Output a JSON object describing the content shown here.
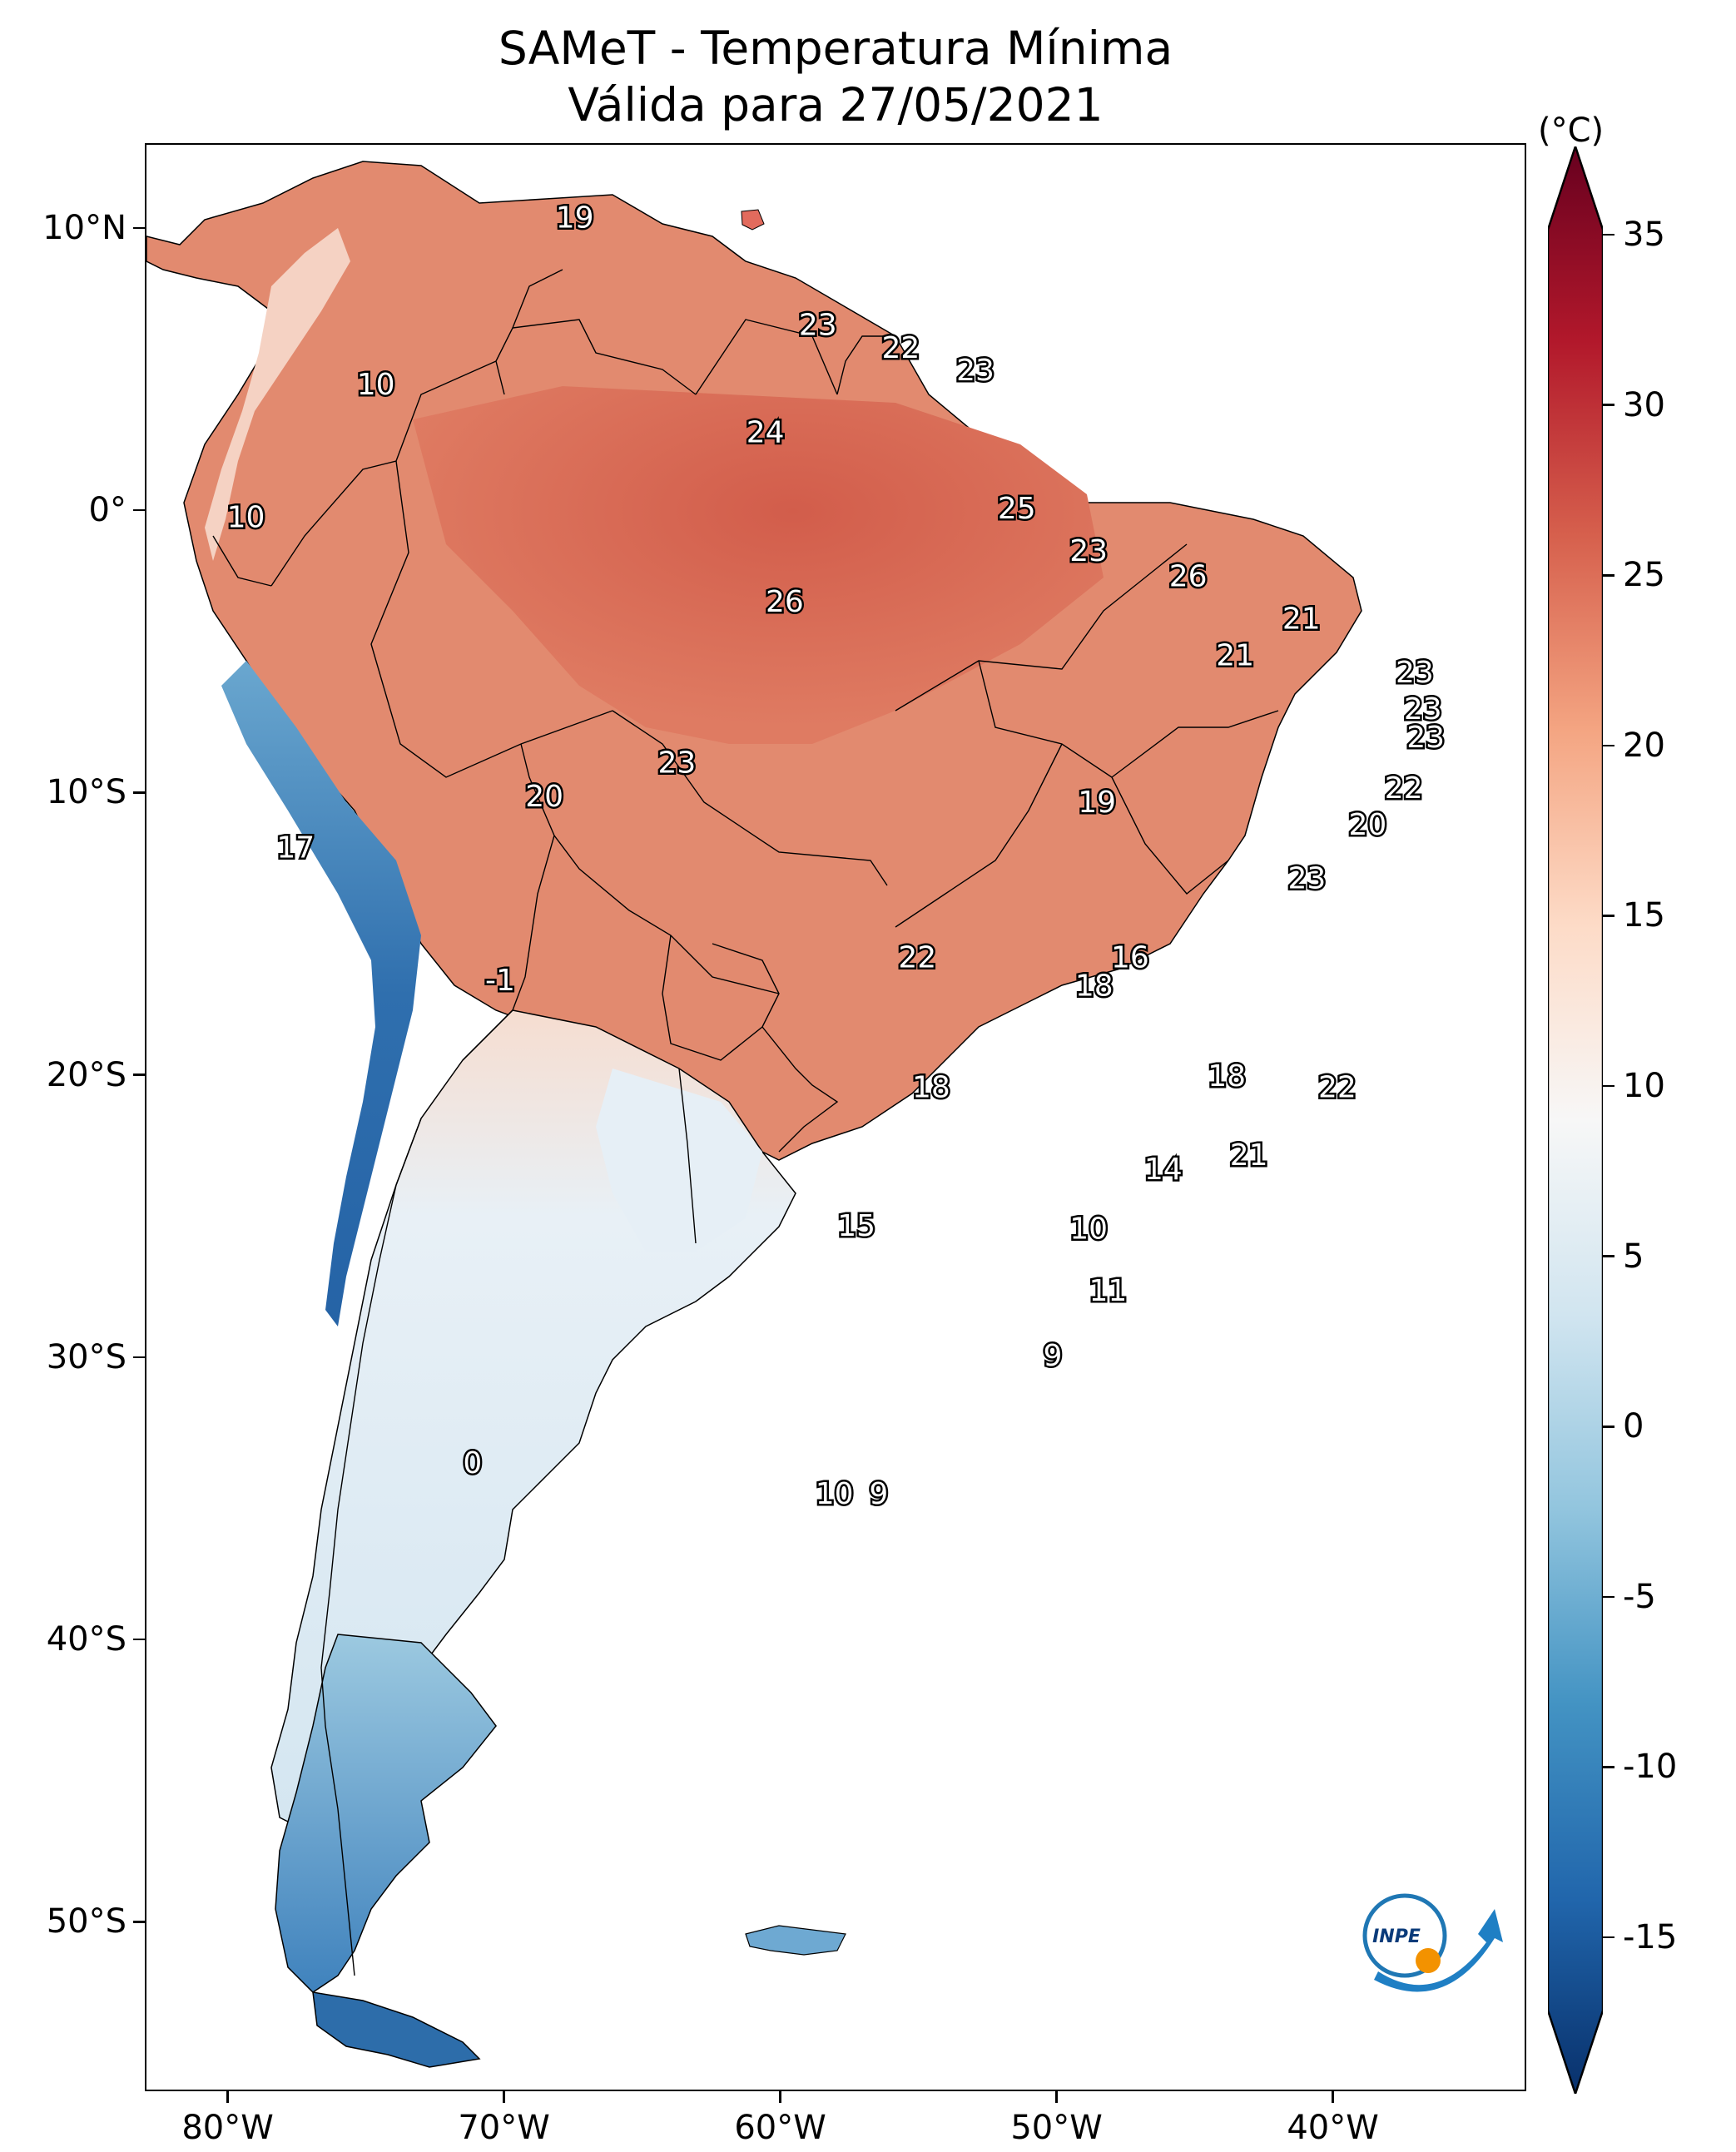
{
  "title_line1": "SAMeT - Temperatura Mínima",
  "title_line2": "Válida para 27/05/2021",
  "map": {
    "lon_range": [
      -83,
      -33
    ],
    "lat_range": [
      -56,
      13
    ],
    "lat_ticks": [
      {
        "value": 10,
        "label": "10°N"
      },
      {
        "value": 0,
        "label": "0°"
      },
      {
        "value": -10,
        "label": "10°S"
      },
      {
        "value": -20,
        "label": "20°S"
      },
      {
        "value": -30,
        "label": "30°S"
      },
      {
        "value": -40,
        "label": "40°S"
      },
      {
        "value": -50,
        "label": "50°S"
      }
    ],
    "lon_ticks": [
      {
        "value": -80,
        "label": "80°W"
      },
      {
        "value": -70,
        "label": "70°W"
      },
      {
        "value": -60,
        "label": "60°W"
      },
      {
        "value": -50,
        "label": "50°W"
      },
      {
        "value": -40,
        "label": "40°W"
      }
    ],
    "point_labels": [
      {
        "lon": -67.5,
        "lat": 10.4,
        "text": "19"
      },
      {
        "lon": -58.7,
        "lat": 6.6,
        "text": "23"
      },
      {
        "lon": -55.7,
        "lat": 5.8,
        "text": "22"
      },
      {
        "lon": -53.0,
        "lat": 5.0,
        "text": "23"
      },
      {
        "lon": -74.7,
        "lat": 4.5,
        "text": "10"
      },
      {
        "lon": -60.6,
        "lat": 2.8,
        "text": "24"
      },
      {
        "lon": -51.5,
        "lat": 0.1,
        "text": "25"
      },
      {
        "lon": -79.4,
        "lat": -0.2,
        "text": "10"
      },
      {
        "lon": -48.9,
        "lat": -1.4,
        "text": "23"
      },
      {
        "lon": -45.3,
        "lat": -2.3,
        "text": "26"
      },
      {
        "lon": -59.9,
        "lat": -3.2,
        "text": "26"
      },
      {
        "lon": -41.2,
        "lat": -3.8,
        "text": "21"
      },
      {
        "lon": -43.6,
        "lat": -5.1,
        "text": "21"
      },
      {
        "lon": -37.1,
        "lat": -5.7,
        "text": "23"
      },
      {
        "lon": -36.8,
        "lat": -7.0,
        "text": "23"
      },
      {
        "lon": -36.7,
        "lat": -8.0,
        "text": "23"
      },
      {
        "lon": -63.8,
        "lat": -8.9,
        "text": "23"
      },
      {
        "lon": -37.5,
        "lat": -9.8,
        "text": "22"
      },
      {
        "lon": -68.6,
        "lat": -10.1,
        "text": "20"
      },
      {
        "lon": -48.6,
        "lat": -10.3,
        "text": "19"
      },
      {
        "lon": -38.8,
        "lat": -11.1,
        "text": "20"
      },
      {
        "lon": -77.6,
        "lat": -11.9,
        "text": "17"
      },
      {
        "lon": -41.0,
        "lat": -13.0,
        "text": "23"
      },
      {
        "lon": -55.1,
        "lat": -15.8,
        "text": "22"
      },
      {
        "lon": -47.4,
        "lat": -15.8,
        "text": "16"
      },
      {
        "lon": -48.7,
        "lat": -16.8,
        "text": "18"
      },
      {
        "lon": -70.2,
        "lat": -16.6,
        "text": "-1"
      },
      {
        "lon": -54.6,
        "lat": -20.4,
        "text": "18"
      },
      {
        "lon": -43.9,
        "lat": -20.0,
        "text": "18"
      },
      {
        "lon": -39.9,
        "lat": -20.4,
        "text": "22"
      },
      {
        "lon": -43.1,
        "lat": -22.8,
        "text": "21"
      },
      {
        "lon": -46.2,
        "lat": -23.3,
        "text": "14"
      },
      {
        "lon": -57.3,
        "lat": -25.3,
        "text": "15"
      },
      {
        "lon": -48.9,
        "lat": -25.4,
        "text": "10"
      },
      {
        "lon": -48.2,
        "lat": -27.6,
        "text": "11"
      },
      {
        "lon": -50.2,
        "lat": -29.9,
        "text": "9"
      },
      {
        "lon": -71.2,
        "lat": -33.7,
        "text": "0"
      },
      {
        "lon": -58.1,
        "lat": -34.8,
        "text": "10"
      },
      {
        "lon": -56.5,
        "lat": -34.8,
        "text": "9"
      }
    ]
  },
  "colorbar": {
    "unit": "(°C)",
    "min": -15,
    "max": 35,
    "ticks": [
      {
        "value": 35,
        "label": "35"
      },
      {
        "value": 30,
        "label": "30"
      },
      {
        "value": 25,
        "label": "25"
      },
      {
        "value": 20,
        "label": "20"
      },
      {
        "value": 15,
        "label": "15"
      },
      {
        "value": 10,
        "label": "10"
      },
      {
        "value": 5,
        "label": "5"
      },
      {
        "value": 0,
        "label": "0"
      },
      {
        "value": -5,
        "label": "-5"
      },
      {
        "value": -10,
        "label": "-10"
      },
      {
        "value": -15,
        "label": "-15"
      }
    ],
    "colors": [
      "#08306b",
      "#2166ac",
      "#4393c3",
      "#92c5de",
      "#d1e5f0",
      "#f7f7f7",
      "#fddbc7",
      "#f4a582",
      "#d6604d",
      "#b2182b",
      "#67001f"
    ]
  },
  "logo": {
    "text": "INPE"
  }
}
